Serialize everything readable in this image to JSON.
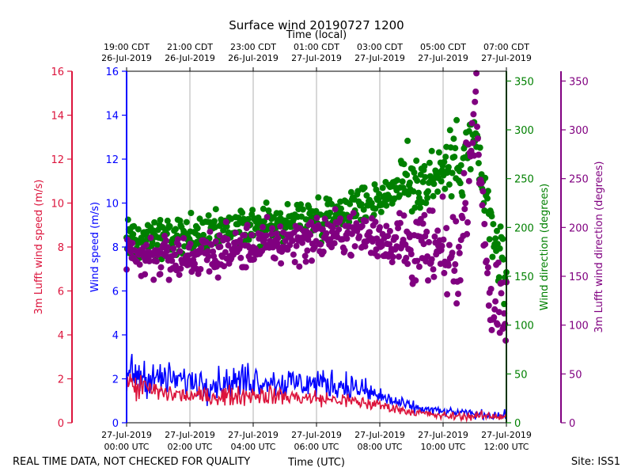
{
  "title": "Surface wind 20190727 1200",
  "footer": {
    "disclaimer": "REAL TIME DATA, NOT CHECKED FOR QUALITY",
    "site": "Site: ISS1"
  },
  "colors": {
    "wind_speed": "#0000ff",
    "lufft_speed": "#dc143c",
    "wind_dir": "#008000",
    "lufft_dir": "#800080",
    "grid": "#b0b0b0"
  },
  "chart_data": {
    "type": "line",
    "title": "Surface wind 20190727 1200",
    "x_axis_bottom": {
      "label": "Time (UTC)",
      "ticks": [
        [
          "27-Jul-2019",
          "00:00 UTC"
        ],
        [
          "27-Jul-2019",
          "02:00 UTC"
        ],
        [
          "27-Jul-2019",
          "04:00 UTC"
        ],
        [
          "27-Jul-2019",
          "06:00 UTC"
        ],
        [
          "27-Jul-2019",
          "08:00 UTC"
        ],
        [
          "27-Jul-2019",
          "10:00 UTC"
        ],
        [
          "27-Jul-2019",
          "12:00 UTC"
        ]
      ],
      "range_hours": [
        0,
        12
      ]
    },
    "x_axis_top": {
      "label": "Time (local)",
      "ticks": [
        [
          "19:00 CDT",
          "26-Jul-2019"
        ],
        [
          "21:00 CDT",
          "26-Jul-2019"
        ],
        [
          "23:00 CDT",
          "26-Jul-2019"
        ],
        [
          "01:00 CDT",
          "27-Jul-2019"
        ],
        [
          "03:00 CDT",
          "27-Jul-2019"
        ],
        [
          "05:00 CDT",
          "27-Jul-2019"
        ],
        [
          "07:00 CDT",
          "27-Jul-2019"
        ]
      ]
    },
    "y_axes": {
      "lufft_speed": {
        "label": "3m Lufft wind speed (m/s)",
        "range": [
          0,
          16
        ],
        "ticks": [
          0,
          2,
          4,
          6,
          8,
          10,
          12,
          14,
          16
        ]
      },
      "wind_speed": {
        "label": "Wind speed (m/s)",
        "range": [
          0,
          16
        ],
        "ticks": [
          0,
          2,
          4,
          6,
          8,
          10,
          12,
          14,
          16
        ]
      },
      "wind_dir": {
        "label": "Wind direction (degrees)",
        "range": [
          0,
          360
        ],
        "ticks": [
          0,
          50,
          100,
          150,
          200,
          250,
          300,
          350
        ]
      },
      "lufft_dir": {
        "label": "3m Lufft wind direction (degrees)",
        "range": [
          0,
          360
        ],
        "ticks": [
          0,
          50,
          100,
          150,
          200,
          250,
          300,
          350
        ]
      }
    },
    "series": [
      {
        "name": "Wind speed",
        "kind": "line",
        "axis": "wind_speed",
        "x_hours": [
          0,
          1,
          2,
          3,
          4,
          5,
          6,
          7,
          8,
          9,
          10,
          11,
          12
        ],
        "values": [
          2.3,
          2.0,
          1.9,
          1.8,
          2.0,
          1.8,
          1.8,
          1.7,
          1.2,
          0.7,
          0.5,
          0.4,
          0.3
        ]
      },
      {
        "name": "3m Lufft wind speed",
        "kind": "line",
        "axis": "lufft_speed",
        "x_hours": [
          0,
          1,
          2,
          3,
          4,
          5,
          6,
          7,
          8,
          9,
          10,
          11,
          12
        ],
        "values": [
          1.8,
          1.4,
          1.2,
          1.2,
          1.3,
          1.2,
          1.1,
          1.0,
          0.8,
          0.5,
          0.3,
          0.3,
          0.3
        ]
      },
      {
        "name": "Wind direction",
        "kind": "scatter",
        "axis": "wind_dir",
        "x_hours": [
          0,
          1,
          2,
          3,
          4,
          5,
          6,
          7,
          8,
          8.5,
          9,
          9.5,
          10,
          10.5,
          11,
          11.5,
          12
        ],
        "values": [
          185,
          190,
          190,
          195,
          200,
          205,
          210,
          220,
          230,
          240,
          245,
          250,
          260,
          270,
          290,
          200,
          150
        ]
      },
      {
        "name": "3m Lufft wind direction",
        "kind": "scatter",
        "axis": "lufft_dir",
        "x_hours": [
          0,
          1,
          2,
          3,
          4,
          5,
          6,
          7,
          8,
          8.5,
          9,
          9.5,
          10,
          10.5,
          11,
          11.5,
          12
        ],
        "values": [
          165,
          170,
          170,
          175,
          180,
          185,
          190,
          195,
          190,
          185,
          180,
          175,
          170,
          165,
          330,
          120,
          100
        ]
      }
    ]
  }
}
